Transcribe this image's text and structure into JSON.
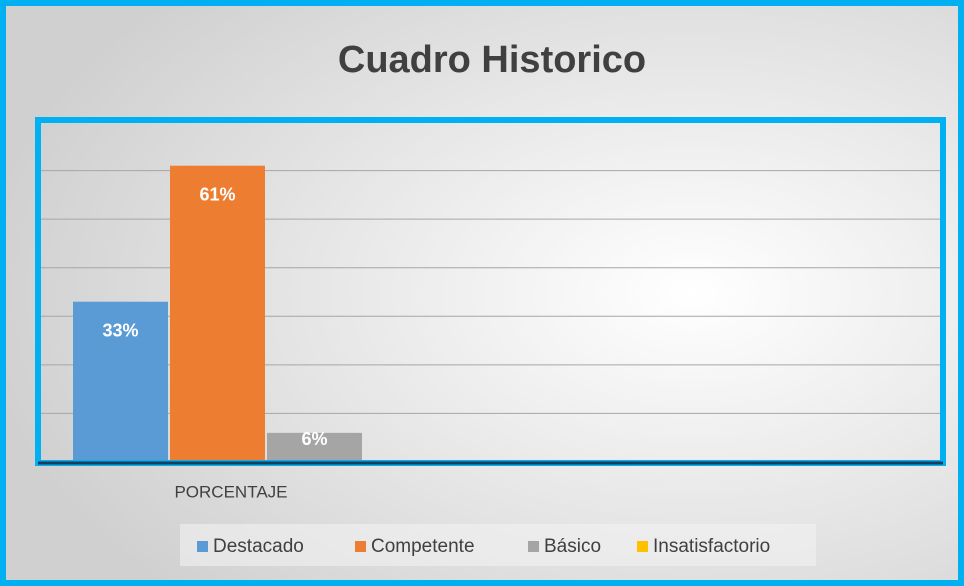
{
  "chart_data": {
    "type": "bar",
    "title": "Cuadro Historico",
    "categories": [
      "PORCENTAJE"
    ],
    "series": [
      {
        "name": "Destacado",
        "color": "#5b9bd5",
        "values": [
          33
        ],
        "value_labels": [
          "33%"
        ]
      },
      {
        "name": "Competente",
        "color": "#ed7d31",
        "values": [
          61
        ],
        "value_labels": [
          "61%"
        ]
      },
      {
        "name": "Básico",
        "color": "#a5a5a5",
        "values": [
          6
        ],
        "value_labels": [
          "6%"
        ]
      },
      {
        "name": "Insatisfactorio",
        "color": "#ffc000",
        "values": [
          0
        ],
        "value_labels": [
          null
        ]
      }
    ],
    "ylim": [
      0,
      70
    ],
    "yticks": [
      0,
      10,
      20,
      30,
      40,
      50,
      60,
      70
    ],
    "grid": true,
    "legend": "bottom"
  }
}
